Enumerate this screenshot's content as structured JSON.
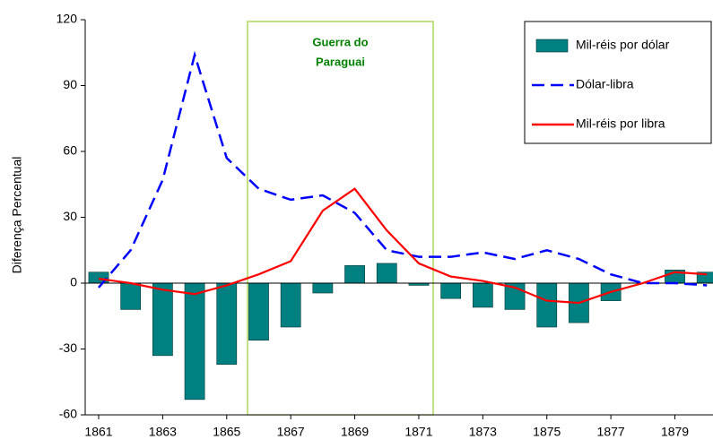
{
  "chart_data": {
    "type": "bar_line",
    "y_label": "Diferença Percentual",
    "x": [
      1861,
      1862,
      1863,
      1864,
      1865,
      1866,
      1867,
      1868,
      1869,
      1870,
      1871,
      1872,
      1873,
      1874,
      1875,
      1876,
      1877,
      1878,
      1879,
      1880
    ],
    "xlim": [
      1860.58,
      1880.19
    ],
    "xticks": [
      1861,
      1863,
      1865,
      1867,
      1869,
      1871,
      1873,
      1875,
      1877,
      1879
    ],
    "ylim": [
      -60,
      120
    ],
    "yticks": [
      -60,
      -30,
      0,
      30,
      60,
      90,
      120
    ],
    "legend": "upper right",
    "series": [
      {
        "name": "Mil-réis por dólar",
        "type": "bar",
        "color": "#008080",
        "values": [
          5,
          -12,
          -33,
          -53,
          -37,
          -26,
          -20,
          -4.5,
          8,
          9,
          -1,
          -7,
          -11,
          -12,
          -20,
          -18,
          -8,
          0,
          6,
          5
        ]
      },
      {
        "name": "Dólar-libra",
        "type": "line",
        "style": "dashed",
        "color": "#0000ff",
        "values": [
          -2,
          15,
          47,
          104,
          57,
          43,
          38,
          40,
          32,
          15,
          12,
          12,
          14,
          11,
          15,
          11,
          4,
          0,
          0,
          -1
        ]
      },
      {
        "name": "Mil-réis por libra",
        "type": "line",
        "style": "solid",
        "color": "#ff0000",
        "values": [
          2,
          0,
          -3,
          -5,
          -1,
          4,
          10,
          33,
          43,
          24,
          9,
          3,
          1,
          -2,
          -8,
          -9,
          -4,
          0,
          5,
          4
        ]
      }
    ],
    "annotation": {
      "lines": [
        "Guerra do",
        "Paraguai"
      ],
      "x_range": [
        1865.65,
        1871.45
      ],
      "color": "#99cc33",
      "text_color": "#008000"
    }
  }
}
